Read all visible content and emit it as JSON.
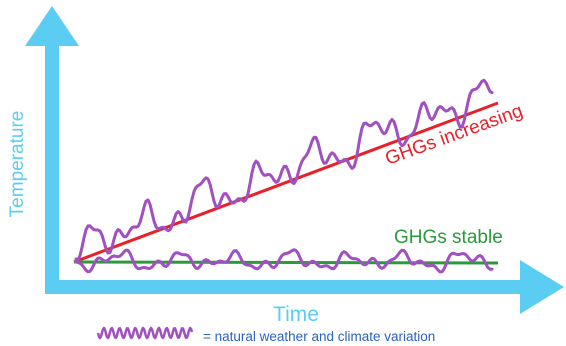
{
  "axes": {
    "y_label": "Temperature",
    "x_label": "Time"
  },
  "annotations": {
    "increasing": "GHGs increasing",
    "stable": "GHGs stable"
  },
  "legend": {
    "text": "= natural weather and climate variation"
  },
  "colors": {
    "axis": "#5ccdf2",
    "increasing_line": "#e8202a",
    "stable_line": "#2a9a3a",
    "variation": "#a050c0",
    "legend_text": "#2a62c0"
  },
  "icons": {
    "legend_swatch": "wavy-line-icon"
  }
}
